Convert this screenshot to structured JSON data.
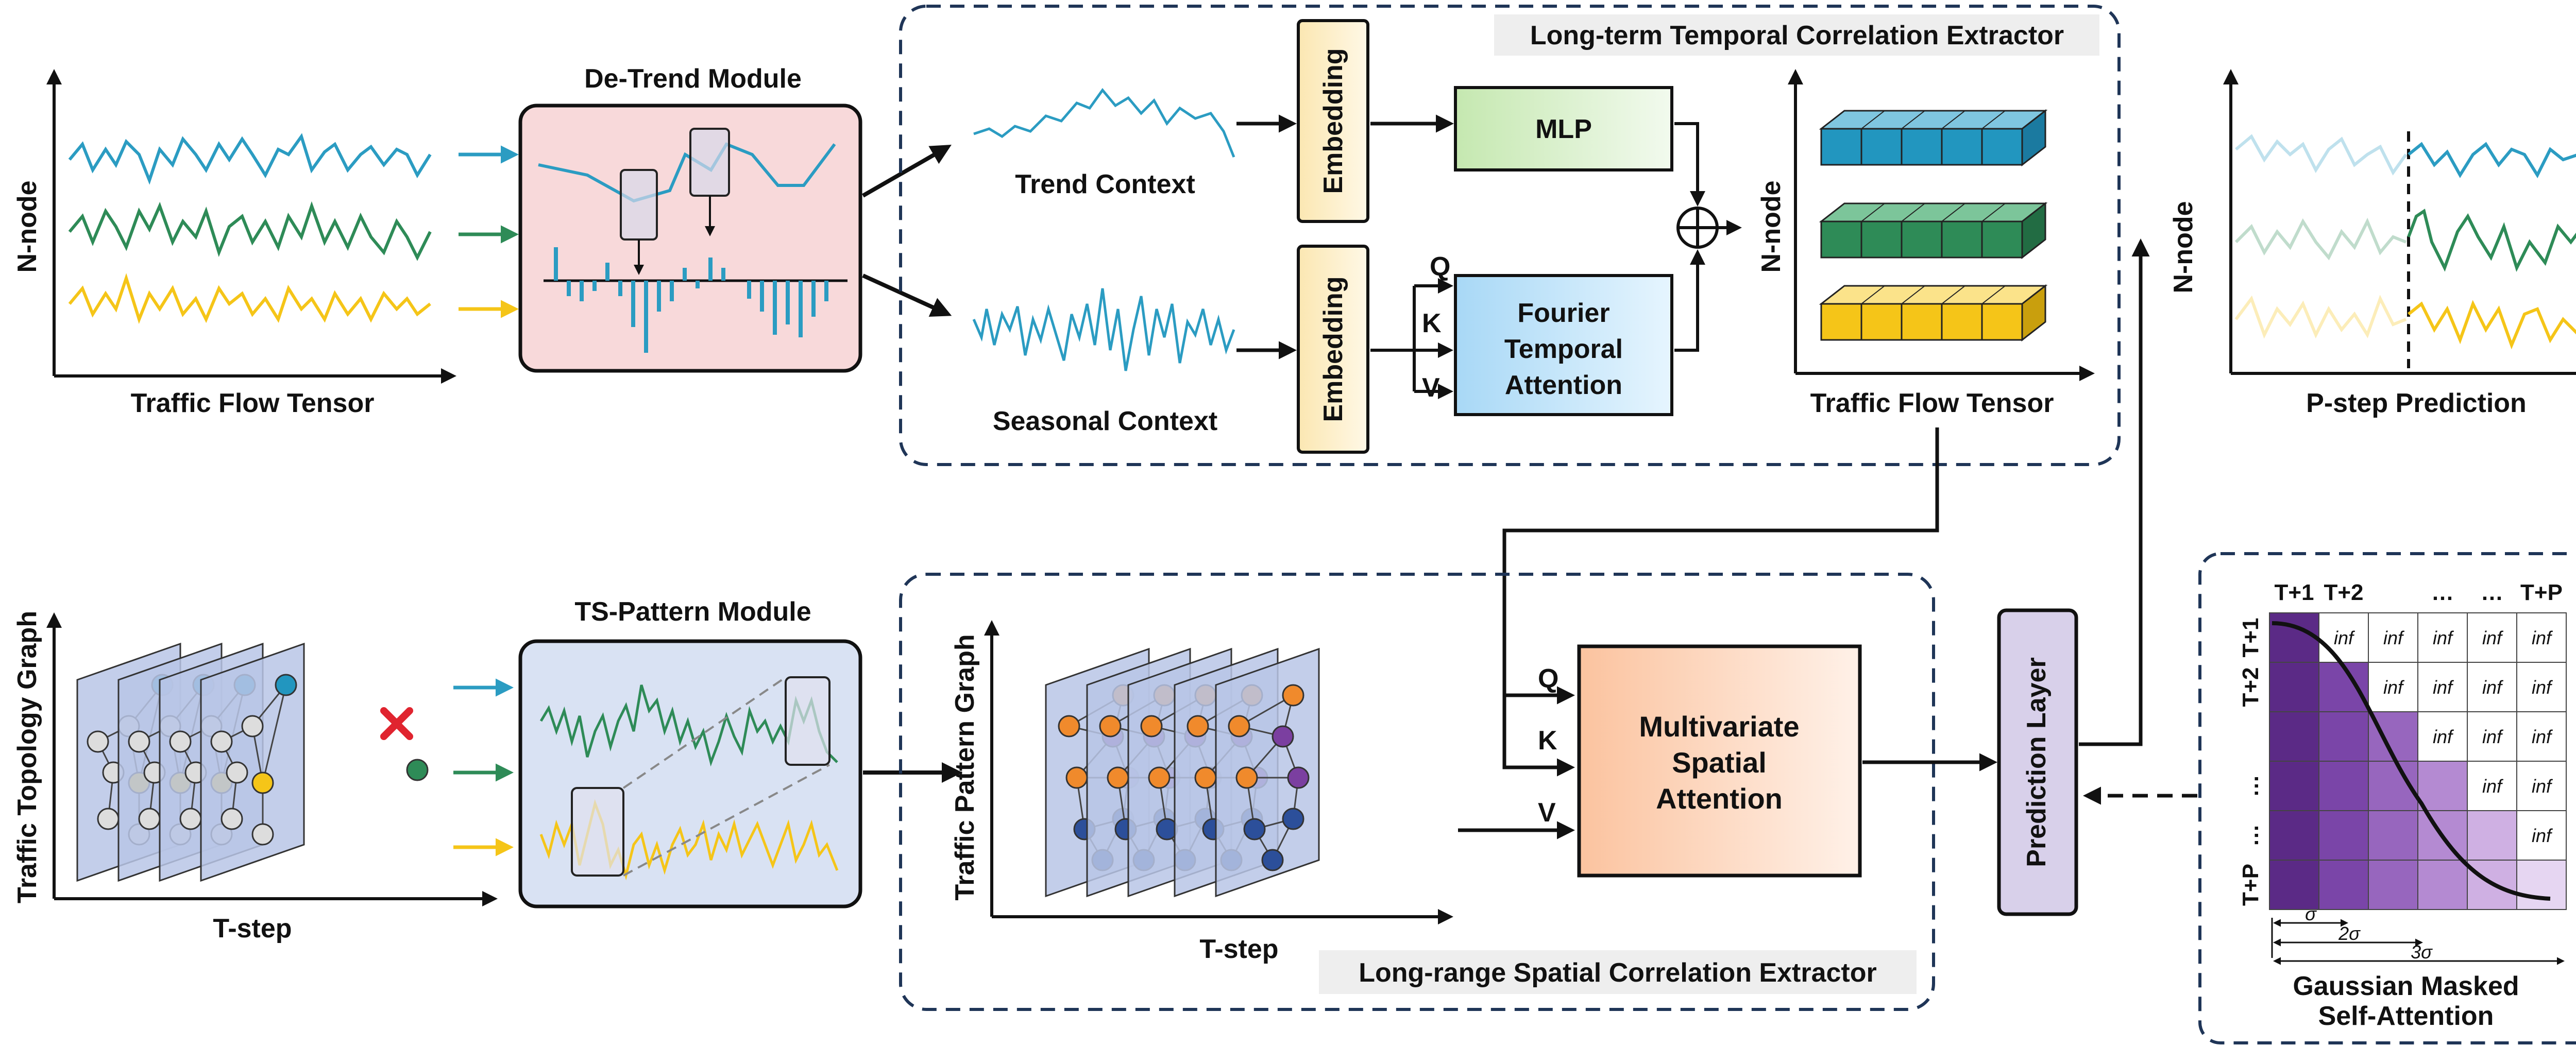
{
  "modules": {
    "detrend_title": "De-Trend Module",
    "tspattern_title": "TS-Pattern Module"
  },
  "top_left": {
    "y_label": "N-node",
    "x_label": "Traffic Flow Tensor"
  },
  "bottom_left": {
    "y_label": "Traffic Topology Graph",
    "x_label": "T-step"
  },
  "temporal": {
    "title": "Long-term Temporal Correlation Extractor",
    "trend_label": "Trend Context",
    "seasonal_label": "Seasonal Context",
    "embedding": "Embedding",
    "mlp": "MLP",
    "fourier_line1": "Fourier",
    "fourier_line2": "Temporal",
    "fourier_line3": "Attention",
    "q": "Q",
    "k": "K",
    "v": "V"
  },
  "tensor": {
    "y_label": "N-node",
    "x_label": "Traffic Flow Tensor"
  },
  "prediction": {
    "y_label": "N-node",
    "x_label": "P-step Prediction"
  },
  "spatial": {
    "title": "Long-range Spatial Correlation Extractor",
    "y_label": "Traffic Pattern Graph",
    "x_label": "T-step",
    "msa_line1": "Multivariate",
    "msa_line2": "Spatial",
    "msa_line3": "Attention",
    "q": "Q",
    "k": "K",
    "v": "V"
  },
  "prediction_layer": "Prediction Layer",
  "gaussian": {
    "title_line1": "Gaussian Masked",
    "title_line2": "Self-Attention",
    "col_headers": [
      "T+1",
      "T+2",
      "…",
      "…",
      "T+P"
    ],
    "row_headers": [
      "T+1",
      "T+2",
      "…",
      "…",
      "T+P"
    ],
    "inf": "inf",
    "sigma1": "σ",
    "sigma2": "2σ",
    "sigma3": "3σ"
  },
  "colors": {
    "blue_series": "#2b9cc2",
    "green_series": "#2e8b57",
    "yellow_series": "#f5c518",
    "dashed_border": "#1f3557",
    "detrend_fill": "#f8d9da",
    "tspattern_fill": "#d9e2f3",
    "mlp_fill": "#d6efc7",
    "fourier_fill": "#bfe3fa",
    "embedding_fill": "#fdf0c9",
    "msa_fill": "#fcd2b8",
    "pred_layer_fill": "#d8d0ea",
    "purple_dark": "#5b2a86"
  }
}
